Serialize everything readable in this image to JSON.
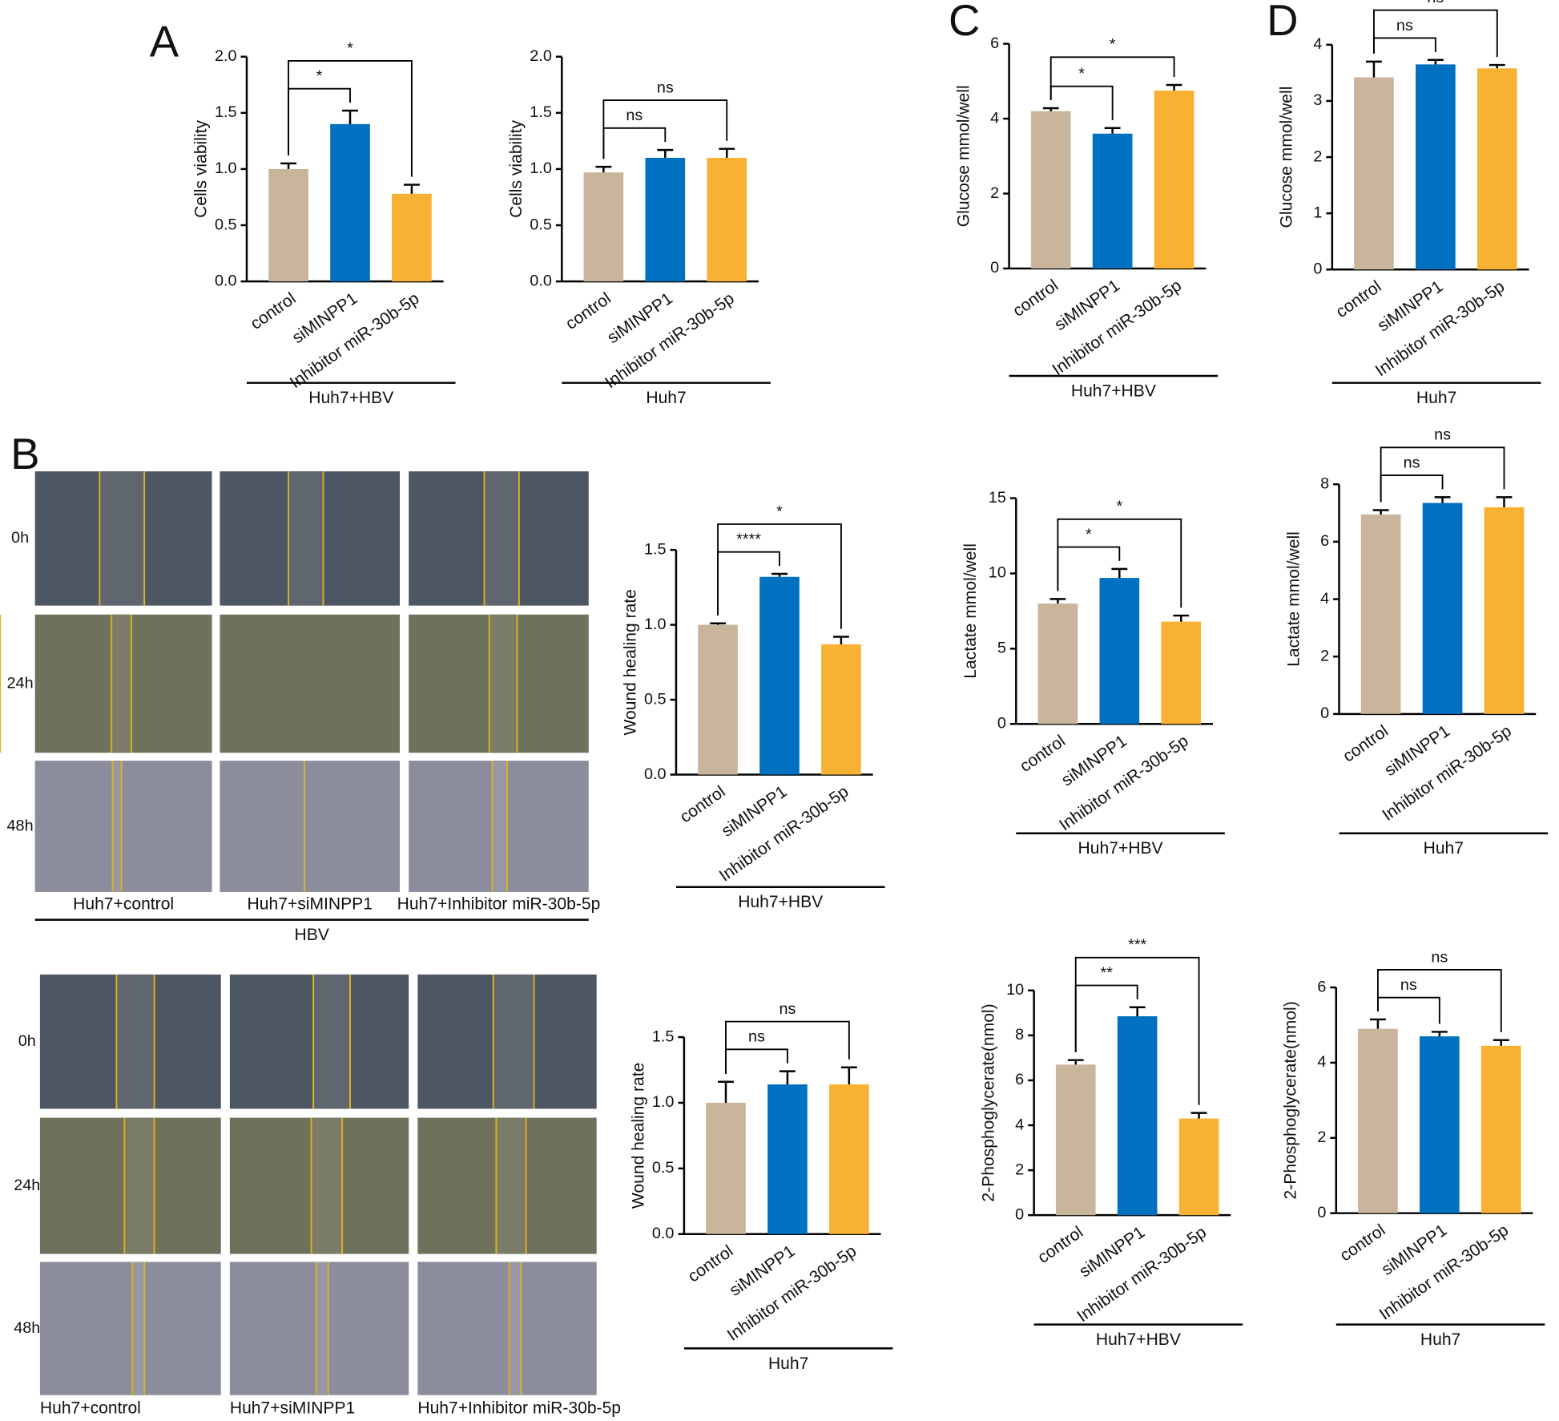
{
  "panel_letters": [
    "A",
    "B",
    "C",
    "D"
  ],
  "wound_panels": [
    {
      "time_labels": [
        "0h",
        "24h",
        "48h"
      ],
      "conditions": [
        "Huh7+control",
        "Huh7+siMINPP1",
        "Huh7+Inhibitor miR-30b-5p"
      ],
      "group": "HBV"
    },
    {
      "time_labels": [
        "0h",
        "24h",
        "48h"
      ],
      "conditions": [
        "Huh7+control",
        "Huh7+siMINPP1",
        "Huh7+Inhibitor miR-30b-5p"
      ]
    }
  ],
  "chart_data": [
    {
      "type": "bar",
      "y_label": "Cells viability",
      "group": "Huh7+HBV",
      "categories": [
        "control",
        "siMINPP1",
        "Inhibitor miR-30b-5p"
      ],
      "colors": [
        "#c8b59b",
        "#0070c0",
        "#f8b133"
      ],
      "values": [
        1.0,
        1.4,
        0.78
      ],
      "errors": [
        0.05,
        0.12,
        0.08
      ],
      "annotations": [
        "*",
        "*"
      ],
      "ylim": [
        0,
        2
      ],
      "yticks": [
        {
          "value": 0,
          "label": "0.0"
        },
        {
          "value": 0.5,
          "label": "0.5"
        },
        {
          "value": 1,
          "label": "1.0"
        },
        {
          "value": 1.5,
          "label": "1.5"
        },
        {
          "value": 2,
          "label": "2.0"
        }
      ]
    },
    {
      "type": "bar",
      "y_label": "Cells viability",
      "group": "Huh7",
      "categories": [
        "control",
        "siMINPP1",
        "Inhibitor miR-30b-5p"
      ],
      "colors": [
        "#c8b59b",
        "#0070c0",
        "#f8b133"
      ],
      "values": [
        0.97,
        1.1,
        1.1
      ],
      "errors": [
        0.05,
        0.07,
        0.08
      ],
      "annotations": [
        "ns",
        "ns"
      ],
      "ylim": [
        0,
        2
      ],
      "yticks": [
        {
          "value": 0,
          "label": "0.0"
        },
        {
          "value": 0.5,
          "label": "0.5"
        },
        {
          "value": 1,
          "label": "1.0"
        },
        {
          "value": 1.5,
          "label": "1.5"
        },
        {
          "value": 2,
          "label": "2.0"
        }
      ]
    },
    {
      "type": "bar",
      "y_label": "Wound healing rate",
      "group": "Huh7+HBV",
      "categories": [
        "control",
        "siMINPP1",
        "Inhibitor miR-30b-5p"
      ],
      "colors": [
        "#c8b59b",
        "#0070c0",
        "#f8b133"
      ],
      "values": [
        1.0,
        1.32,
        0.87
      ],
      "errors": [
        0.01,
        0.02,
        0.05
      ],
      "annotations": [
        "****",
        "*"
      ],
      "ylim": [
        0,
        1.5
      ],
      "yticks": [
        {
          "value": 0,
          "label": "0.0"
        },
        {
          "value": 0.5,
          "label": "0.5"
        },
        {
          "value": 1,
          "label": "1.0"
        },
        {
          "value": 1.5,
          "label": "1.5"
        }
      ]
    },
    {
      "type": "bar",
      "y_label": "Wound healing rate",
      "group": "Huh7",
      "categories": [
        "control",
        "siMINPP1",
        "Inhibitor miR-30b-5p"
      ],
      "colors": [
        "#c8b59b",
        "#0070c0",
        "#f8b133"
      ],
      "values": [
        1.0,
        1.14,
        1.14
      ],
      "errors": [
        0.16,
        0.1,
        0.13
      ],
      "annotations": [
        "ns",
        "ns"
      ],
      "ylim": [
        0,
        1.5
      ],
      "yticks": [
        {
          "value": 0,
          "label": "0.0"
        },
        {
          "value": 0.5,
          "label": "0.5"
        },
        {
          "value": 1,
          "label": "1.0"
        },
        {
          "value": 1.5,
          "label": "1.5"
        }
      ]
    },
    {
      "type": "bar",
      "y_label": "Glucose mmol/well",
      "group": "Huh7+HBV",
      "categories": [
        "control",
        "siMINPP1",
        "Inhibitor miR-30b-5p"
      ],
      "colors": [
        "#c8b59b",
        "#0070c0",
        "#f8b133"
      ],
      "values": [
        4.2,
        3.6,
        4.75
      ],
      "errors": [
        0.08,
        0.15,
        0.15
      ],
      "annotations": [
        "*",
        "*"
      ],
      "ylim": [
        0,
        6
      ],
      "yticks": [
        0,
        2,
        4,
        6
      ]
    },
    {
      "type": "bar",
      "y_label": "Glucose mmol/well",
      "group": "Huh7",
      "categories": [
        "control",
        "siMINPP1",
        "Inhibitor miR-30b-5p"
      ],
      "colors": [
        "#c8b59b",
        "#0070c0",
        "#f8b133"
      ],
      "values": [
        3.42,
        3.65,
        3.58
      ],
      "errors": [
        0.28,
        0.08,
        0.06
      ],
      "annotations": [
        "ns",
        "ns"
      ],
      "ylim": [
        0,
        4
      ],
      "yticks": [
        0,
        1,
        2,
        3,
        4
      ]
    },
    {
      "type": "bar",
      "y_label": "Lactate mmol/well",
      "group": "Huh7+HBV",
      "categories": [
        "control",
        "siMINPP1",
        "Inhibitor miR-30b-5p"
      ],
      "colors": [
        "#c8b59b",
        "#0070c0",
        "#f8b133"
      ],
      "values": [
        8.0,
        9.7,
        6.8
      ],
      "errors": [
        0.3,
        0.6,
        0.4
      ],
      "annotations": [
        "*",
        "*"
      ],
      "ylim": [
        0,
        15
      ],
      "yticks": [
        0,
        5,
        10,
        15
      ]
    },
    {
      "type": "bar",
      "y_label": "Lactate mmol/well",
      "group": "Huh7",
      "categories": [
        "control",
        "siMINPP1",
        "Inhibitor miR-30b-5p"
      ],
      "colors": [
        "#c8b59b",
        "#0070c0",
        "#f8b133"
      ],
      "values": [
        6.95,
        7.35,
        7.2
      ],
      "errors": [
        0.15,
        0.2,
        0.35
      ],
      "annotations": [
        "ns",
        "ns"
      ],
      "ylim": [
        0,
        8
      ],
      "yticks": [
        0,
        2,
        4,
        6,
        8
      ]
    },
    {
      "type": "bar",
      "y_label": "2-Phosphoglycerate(nmol)",
      "group": "Huh7+HBV",
      "categories": [
        "control",
        "siMINPP1",
        "Inhibitor miR-30b-5p"
      ],
      "colors": [
        "#c8b59b",
        "#0070c0",
        "#f8b133"
      ],
      "values": [
        6.7,
        8.85,
        4.3
      ],
      "errors": [
        0.2,
        0.4,
        0.25
      ],
      "annotations": [
        "**",
        "***"
      ],
      "ylim": [
        0,
        10
      ],
      "yticks": [
        0,
        2,
        4,
        6,
        8,
        10
      ]
    },
    {
      "type": "bar",
      "y_label": "2-Phosphoglycerate(nmol)",
      "group": "Huh7",
      "categories": [
        "control",
        "siMINPP1",
        "Inhibitor miR-30b-5p"
      ],
      "colors": [
        "#c8b59b",
        "#0070c0",
        "#f8b133"
      ],
      "values": [
        4.9,
        4.7,
        4.45
      ],
      "errors": [
        0.25,
        0.12,
        0.15
      ],
      "annotations": [
        "ns",
        "ns"
      ],
      "ylim": [
        0,
        6
      ],
      "yticks": [
        0,
        2,
        4,
        6
      ]
    }
  ]
}
